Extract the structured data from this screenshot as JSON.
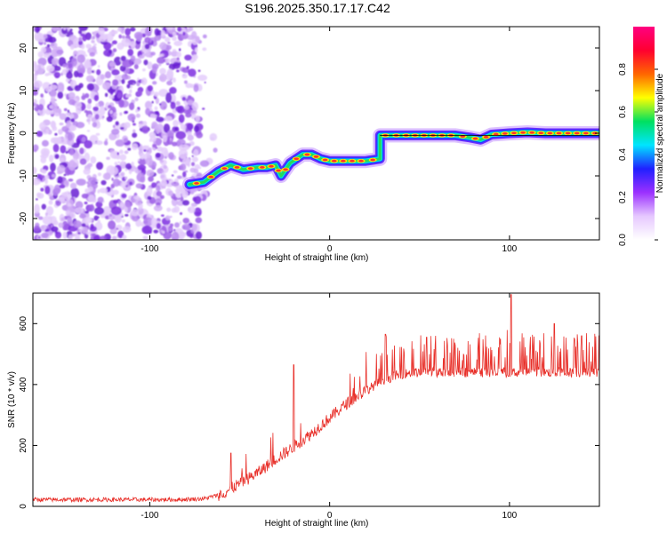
{
  "title": "S196.2025.350.17.17.C42",
  "chart_data": [
    {
      "type": "heatmap",
      "name": "spectrogram",
      "xlabel": "Height of straight line (km)",
      "ylabel": "Frequency (Hz)",
      "xlim": [
        -165,
        150
      ],
      "ylim": [
        -25,
        25
      ],
      "x_ticks": [
        -100,
        0,
        100
      ],
      "y_ticks": [
        -20,
        -10,
        0,
        10,
        20
      ],
      "colorbar": {
        "label": "Normalized spectral amplitude",
        "range": [
          0,
          1
        ],
        "ticks": [
          0.0,
          0.2,
          0.4,
          0.6,
          0.8
        ],
        "colors": [
          "#ffffff",
          "#e6c8ff",
          "#9b30ff",
          "#2020ff",
          "#00e5ff",
          "#00e060",
          "#ffff00",
          "#ff6600",
          "#ff0030",
          "#ff0080"
        ]
      },
      "noise_region_x": [
        -165,
        -72
      ],
      "ridge": {
        "x": [
          -78,
          -70,
          -62,
          -55,
          -48,
          -40,
          -35,
          -30,
          -27,
          -22,
          -15,
          -10,
          -5,
          0,
          10,
          20,
          28,
          28,
          40,
          55,
          70,
          78,
          84,
          90,
          100,
          110,
          120,
          135,
          150
        ],
        "y": [
          -12,
          -11.5,
          -9,
          -7.5,
          -8.5,
          -8,
          -8,
          -7.5,
          -10,
          -7,
          -5,
          -5,
          -6,
          -6.5,
          -6.5,
          -6.5,
          -6,
          -0.5,
          -0.5,
          -0.5,
          -0.5,
          -1,
          -1.5,
          -0.3,
          0,
          0.2,
          0,
          0,
          0
        ]
      }
    },
    {
      "type": "line",
      "name": "snr",
      "xlabel": "Height of straight line (km)",
      "ylabel": "SNR (10 * v/v)",
      "xlim": [
        -165,
        150
      ],
      "ylim": [
        0,
        700
      ],
      "x_ticks": [
        -100,
        0,
        100
      ],
      "y_ticks": [
        0,
        200,
        400,
        600
      ],
      "series": [
        {
          "name": "SNR",
          "color": "#e8302a",
          "x": [
            -165,
            -140,
            -110,
            -85,
            -70,
            -60,
            -50,
            -40,
            -30,
            -20,
            -10,
            0,
            10,
            20,
            30,
            40,
            50,
            60,
            80,
            100,
            120,
            150
          ],
          "y": [
            22,
            22,
            22,
            22,
            25,
            40,
            75,
            110,
            155,
            195,
            240,
            290,
            340,
            380,
            415,
            435,
            440,
            440,
            440,
            440,
            440,
            440
          ]
        }
      ],
      "spikes": [
        {
          "x": -20,
          "y": 465
        },
        {
          "x": -55,
          "y": 175
        },
        {
          "x": 31,
          "y": 565
        },
        {
          "x": 54,
          "y": 555
        },
        {
          "x": 101,
          "y": 695
        },
        {
          "x": 125,
          "y": 600
        },
        {
          "x": 140,
          "y": 560
        },
        {
          "x": 150,
          "y": 560
        }
      ]
    }
  ]
}
